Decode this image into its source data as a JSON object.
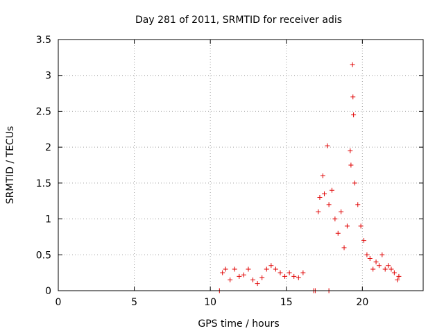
{
  "chart_data": {
    "type": "scatter",
    "title": "Day 281 of 2011, SRMTID for receiver adis",
    "xlabel": "GPS time / hours",
    "ylabel": "SRMTID / TECUs",
    "xlim": [
      0,
      24
    ],
    "ylim": [
      0,
      3.5
    ],
    "xticks": [
      "0",
      "5",
      "10",
      "15",
      "20"
    ],
    "yticks": [
      "0",
      "0.5",
      "1",
      "1.5",
      "2",
      "2.5",
      "3",
      "3.5"
    ],
    "grid": true,
    "marker": "+",
    "color": "#e00000",
    "series": [
      {
        "name": "SRMTID",
        "points": [
          [
            10.6,
            0.0
          ],
          [
            16.8,
            0.0
          ],
          [
            16.9,
            0.0
          ],
          [
            17.8,
            0.0
          ],
          [
            10.8,
            0.25
          ],
          [
            11.0,
            0.3
          ],
          [
            11.3,
            0.15
          ],
          [
            11.6,
            0.3
          ],
          [
            11.9,
            0.2
          ],
          [
            12.2,
            0.22
          ],
          [
            12.5,
            0.3
          ],
          [
            12.8,
            0.15
          ],
          [
            13.1,
            0.1
          ],
          [
            13.4,
            0.18
          ],
          [
            13.7,
            0.3
          ],
          [
            14.0,
            0.35
          ],
          [
            14.3,
            0.3
          ],
          [
            14.6,
            0.25
          ],
          [
            14.9,
            0.2
          ],
          [
            15.2,
            0.25
          ],
          [
            15.5,
            0.2
          ],
          [
            15.8,
            0.18
          ],
          [
            16.1,
            0.25
          ],
          [
            17.1,
            1.1
          ],
          [
            17.2,
            1.3
          ],
          [
            17.4,
            1.6
          ],
          [
            17.5,
            1.35
          ],
          [
            17.7,
            2.02
          ],
          [
            17.8,
            1.2
          ],
          [
            18.0,
            1.4
          ],
          [
            18.2,
            1.0
          ],
          [
            18.4,
            0.8
          ],
          [
            18.6,
            1.1
          ],
          [
            18.8,
            0.6
          ],
          [
            19.0,
            0.9
          ],
          [
            19.2,
            1.95
          ],
          [
            19.25,
            1.75
          ],
          [
            19.35,
            3.15
          ],
          [
            19.38,
            2.7
          ],
          [
            19.42,
            2.45
          ],
          [
            19.5,
            1.5
          ],
          [
            19.7,
            1.2
          ],
          [
            19.9,
            0.9
          ],
          [
            20.1,
            0.7
          ],
          [
            20.3,
            0.5
          ],
          [
            20.5,
            0.45
          ],
          [
            20.7,
            0.3
          ],
          [
            20.9,
            0.4
          ],
          [
            21.1,
            0.35
          ],
          [
            21.3,
            0.5
          ],
          [
            21.5,
            0.3
          ],
          [
            21.7,
            0.35
          ],
          [
            21.9,
            0.3
          ],
          [
            22.1,
            0.25
          ],
          [
            22.3,
            0.15
          ],
          [
            22.4,
            0.2
          ]
        ]
      }
    ]
  }
}
